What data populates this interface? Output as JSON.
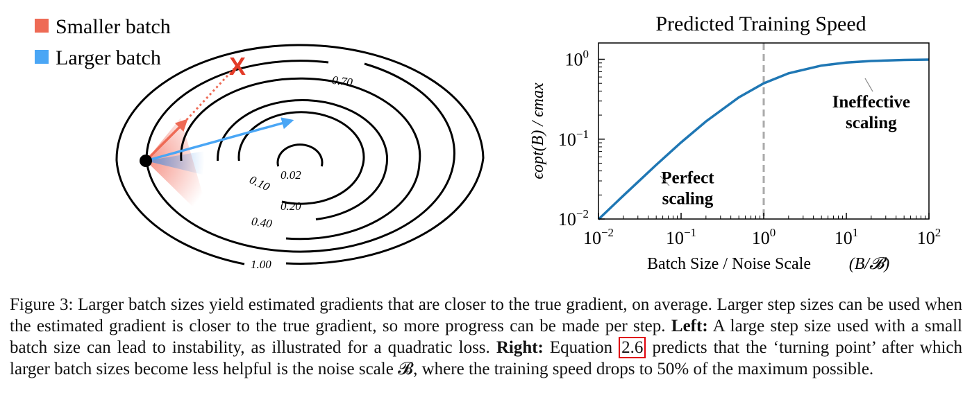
{
  "left_panel": {
    "legend": [
      {
        "label": "Smaller batch",
        "color": "#ee6a55"
      },
      {
        "label": "Larger batch",
        "color": "#4aa6f5"
      }
    ],
    "contours": [
      {
        "label": "0.02"
      },
      {
        "label": "0.10"
      },
      {
        "label": "0.20"
      },
      {
        "label": "0.40"
      },
      {
        "label": "0.70"
      },
      {
        "label": "1.00"
      }
    ],
    "marker": "X"
  },
  "chart_data": {
    "type": "line",
    "title": "Predicted Training Speed",
    "xlabel": "Batch Size / Noise Scale",
    "xlabel_math": "(B/𝓑)",
    "ylabel": "ϵopt(B) / ϵmax",
    "x_scale": "log",
    "y_scale": "log",
    "xlim": [
      0.01,
      100
    ],
    "ylim": [
      0.01,
      1.6
    ],
    "x_ticks": [
      {
        "value": 0.01,
        "base": "10",
        "exp": "−2"
      },
      {
        "value": 0.1,
        "base": "10",
        "exp": "−1"
      },
      {
        "value": 1,
        "base": "10",
        "exp": "0"
      },
      {
        "value": 10,
        "base": "10",
        "exp": "1"
      },
      {
        "value": 100,
        "base": "10",
        "exp": "2"
      }
    ],
    "y_ticks": [
      {
        "value": 0.01,
        "base": "10",
        "exp": "−2"
      },
      {
        "value": 0.1,
        "base": "10",
        "exp": "−1"
      },
      {
        "value": 1,
        "base": "10",
        "exp": "0"
      }
    ],
    "series": [
      {
        "x": [
          0.01,
          0.02,
          0.05,
          0.1,
          0.2,
          0.5,
          1,
          2,
          5,
          10,
          20,
          50,
          100
        ],
        "y": [
          0.0099,
          0.0196,
          0.0476,
          0.0909,
          0.1667,
          0.3333,
          0.5,
          0.6667,
          0.8333,
          0.9091,
          0.9524,
          0.9804,
          0.9901
        ],
        "color": "#1f77b4"
      }
    ],
    "vline": {
      "x": 1,
      "style": "dashed",
      "color": "#aaaaaa"
    },
    "annotations": [
      {
        "lines": [
          "Perfect",
          "scaling"
        ],
        "x": 0.12,
        "y": 0.028
      },
      {
        "lines": [
          "Ineffective",
          "scaling"
        ],
        "x": 20,
        "y": 0.25
      }
    ],
    "grid": false
  },
  "caption": {
    "label": "Figure 3:",
    "text1": "Larger batch sizes yield estimated gradients that are closer to the true gradient, on average. Larger step sizes can be used when the estimated gradient is closer to the true gradient, so more progress can be made per step.",
    "left_label": "Left:",
    "left_text": "A large step size used with a small batch size can lead to instability, as illustrated for a quadratic loss.",
    "right_label": "Right:",
    "right_text_pre": "Equation",
    "eq_ref": "2.6",
    "right_text_post": "predicts that the ‘turning point’ after which larger batch sizes become less helpful is the noise scale 𝓑, where the training speed drops to 50% of the maximum possible."
  }
}
